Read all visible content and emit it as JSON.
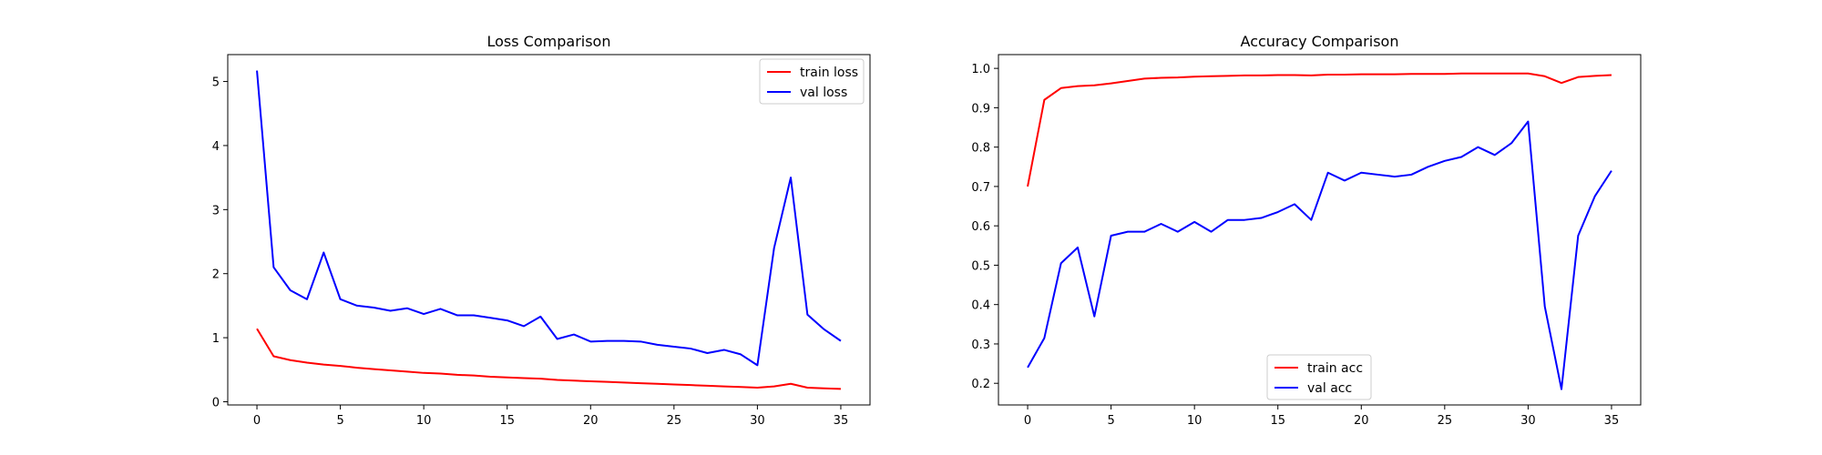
{
  "chart_data": [
    {
      "type": "line",
      "title": "Loss Comparison",
      "xlabel": "",
      "ylabel": "",
      "xlim": [
        -1.75,
        36.75
      ],
      "ylim": [
        -0.05,
        5.42
      ],
      "xticks": [
        0,
        5,
        10,
        15,
        20,
        25,
        30,
        35
      ],
      "yticks": [
        0,
        1,
        2,
        3,
        4,
        5
      ],
      "grid": false,
      "legend": "upper right",
      "x": [
        0,
        1,
        2,
        3,
        4,
        5,
        6,
        7,
        8,
        9,
        10,
        11,
        12,
        13,
        14,
        15,
        16,
        17,
        18,
        19,
        20,
        21,
        22,
        23,
        24,
        25,
        26,
        27,
        28,
        29,
        30,
        31,
        32,
        33,
        34,
        35
      ],
      "series": [
        {
          "name": "train loss",
          "color": "#ff0000",
          "values": [
            1.14,
            0.71,
            0.65,
            0.61,
            0.58,
            0.56,
            0.53,
            0.51,
            0.49,
            0.47,
            0.45,
            0.44,
            0.42,
            0.41,
            0.39,
            0.38,
            0.37,
            0.36,
            0.34,
            0.33,
            0.32,
            0.31,
            0.3,
            0.29,
            0.28,
            0.27,
            0.26,
            0.25,
            0.24,
            0.23,
            0.22,
            0.24,
            0.28,
            0.22,
            0.21,
            0.2
          ]
        },
        {
          "name": "val loss",
          "color": "#0000ff",
          "values": [
            5.17,
            2.1,
            1.74,
            1.6,
            2.33,
            1.6,
            1.5,
            1.47,
            1.42,
            1.46,
            1.37,
            1.45,
            1.35,
            1.35,
            1.31,
            1.27,
            1.18,
            1.33,
            0.98,
            1.05,
            0.94,
            0.95,
            0.95,
            0.94,
            0.89,
            0.86,
            0.83,
            0.76,
            0.81,
            0.74,
            0.57,
            2.4,
            3.5,
            1.36,
            1.13,
            0.95
          ]
        }
      ]
    },
    {
      "type": "line",
      "title": "Accuracy Comparison",
      "xlabel": "",
      "ylabel": "",
      "xlim": [
        -1.75,
        36.75
      ],
      "ylim": [
        0.145,
        1.035
      ],
      "xticks": [
        0,
        5,
        10,
        15,
        20,
        25,
        30,
        35
      ],
      "yticks": [
        0.2,
        0.3,
        0.4,
        0.5,
        0.6,
        0.7,
        0.8,
        0.9,
        1.0
      ],
      "ytick_labels": [
        "0.2",
        "0.3",
        "0.4",
        "0.5",
        "0.6",
        "0.7",
        "0.8",
        "0.9",
        "1.0"
      ],
      "grid": false,
      "legend": "lower center",
      "x": [
        0,
        1,
        2,
        3,
        4,
        5,
        6,
        7,
        8,
        9,
        10,
        11,
        12,
        13,
        14,
        15,
        16,
        17,
        18,
        19,
        20,
        21,
        22,
        23,
        24,
        25,
        26,
        27,
        28,
        29,
        30,
        31,
        32,
        33,
        34,
        35
      ],
      "series": [
        {
          "name": "train acc",
          "color": "#ff0000",
          "values": [
            0.7,
            0.92,
            0.95,
            0.955,
            0.957,
            0.962,
            0.968,
            0.974,
            0.976,
            0.977,
            0.979,
            0.98,
            0.981,
            0.982,
            0.982,
            0.983,
            0.983,
            0.982,
            0.984,
            0.984,
            0.985,
            0.985,
            0.985,
            0.986,
            0.986,
            0.986,
            0.987,
            0.987,
            0.987,
            0.987,
            0.987,
            0.98,
            0.963,
            0.978,
            0.981,
            0.983
          ]
        },
        {
          "name": "val acc",
          "color": "#0000ff",
          "values": [
            0.24,
            0.315,
            0.505,
            0.545,
            0.37,
            0.575,
            0.585,
            0.585,
            0.605,
            0.585,
            0.61,
            0.585,
            0.615,
            0.615,
            0.62,
            0.635,
            0.655,
            0.615,
            0.735,
            0.715,
            0.735,
            0.73,
            0.725,
            0.73,
            0.75,
            0.765,
            0.775,
            0.8,
            0.78,
            0.81,
            0.865,
            0.395,
            0.185,
            0.575,
            0.675,
            0.74
          ]
        }
      ]
    }
  ]
}
